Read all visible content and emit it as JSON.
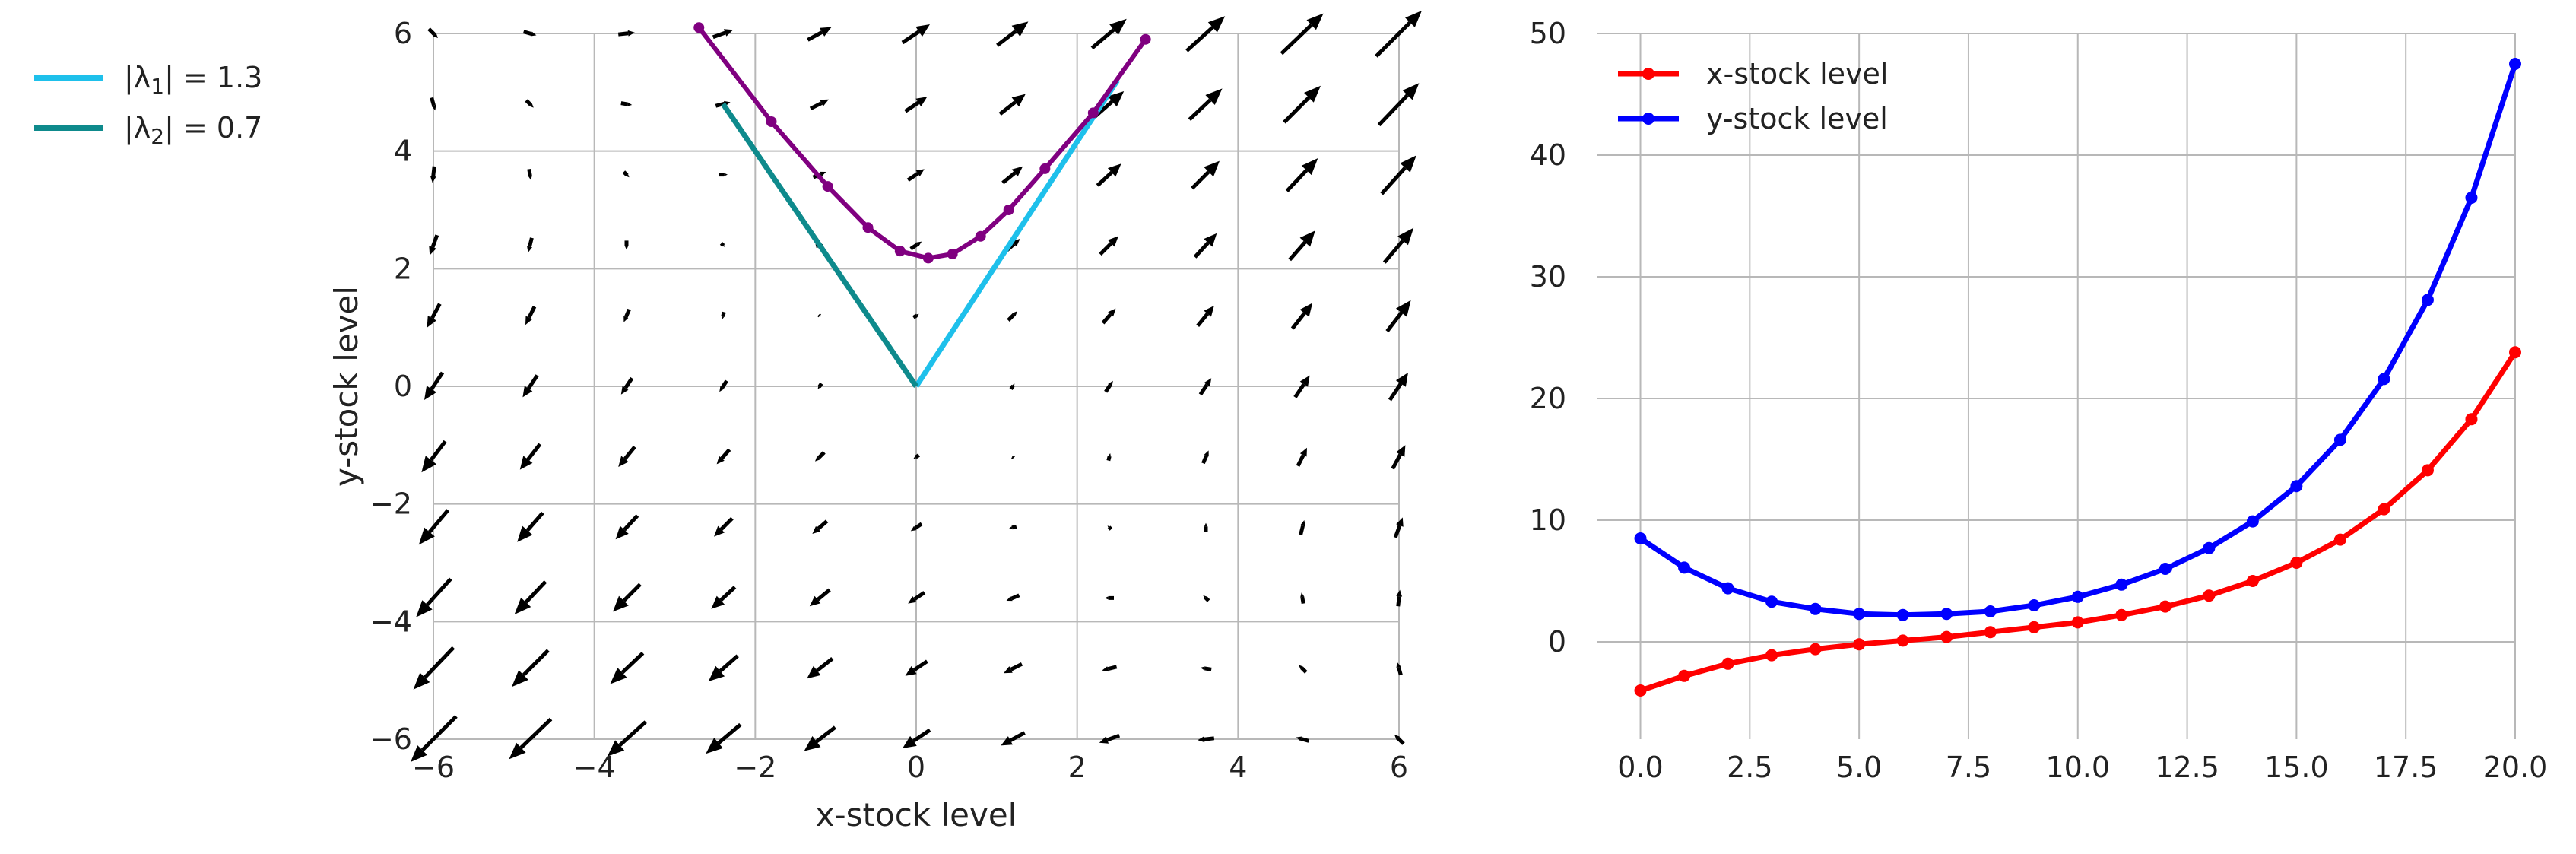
{
  "chart_data": [
    {
      "type": "quiver",
      "xlabel": "x-stock level",
      "ylabel": "y-stock level",
      "xlim": [
        -6,
        6
      ],
      "ylim": [
        -6,
        6
      ],
      "xticks": [
        -6,
        -4,
        -2,
        0,
        2,
        4,
        6
      ],
      "yticks": [
        -6,
        -4,
        -2,
        0,
        2,
        4,
        6
      ],
      "grid": true,
      "vector_field": {
        "x_points": [
          -6,
          -4.8,
          -3.6,
          -2.4,
          -1.2,
          0,
          1.2,
          2.4,
          3.6,
          4.8,
          6
        ],
        "y_points": [
          -6,
          -4.8,
          -3.6,
          -2.4,
          -1.2,
          0,
          1.2,
          2.4,
          3.6,
          4.8,
          6
        ],
        "matrix": [
          [
            0.2,
            0.3
          ],
          [
            0.3,
            0.2
          ]
        ],
        "arrow_color": "#000000"
      },
      "eigenvectors": [
        {
          "name": "|λ₁| = 1.3",
          "color": "#1EC0EB",
          "points": [
            [
              0,
              0
            ],
            [
              2.5,
              5.2
            ]
          ]
        },
        {
          "name": "|λ₂| = 0.7",
          "color": "#0E8A8C",
          "points": [
            [
              0,
              0
            ],
            [
              -2.4,
              4.8
            ]
          ]
        }
      ],
      "trajectory": {
        "color": "#800080",
        "points": [
          [
            -2.7,
            6.1
          ],
          [
            -1.8,
            4.5
          ],
          [
            -1.1,
            3.4
          ],
          [
            -0.6,
            2.7
          ],
          [
            -0.2,
            2.3
          ],
          [
            0.15,
            2.18
          ],
          [
            0.45,
            2.25
          ],
          [
            0.8,
            2.55
          ],
          [
            1.15,
            3.0
          ],
          [
            1.6,
            3.7
          ],
          [
            2.2,
            4.65
          ],
          [
            2.85,
            5.9
          ]
        ]
      },
      "legend": {
        "position": "outside-left",
        "entries": [
          {
            "prefix": "|λ",
            "sub": "1",
            "suffix": "| = 1.3",
            "color": "#1EC0EB"
          },
          {
            "prefix": "|λ",
            "sub": "2",
            "suffix": "| = 0.7",
            "color": "#0E8A8C"
          }
        ]
      }
    },
    {
      "type": "line",
      "xlabel": "",
      "ylabel": "",
      "xlim": [
        -1,
        20
      ],
      "ylim": [
        -8,
        50
      ],
      "xticks": [
        "0.0",
        "2.5",
        "5.0",
        "7.5",
        "10.0",
        "12.5",
        "15.0",
        "17.5",
        "20.0"
      ],
      "yticks": [
        0,
        10,
        20,
        30,
        40,
        50
      ],
      "grid": true,
      "legend_position": "top-left",
      "x": [
        0,
        1,
        2,
        3,
        4,
        5,
        6,
        7,
        8,
        9,
        10,
        11,
        12,
        13,
        14,
        15,
        16,
        17,
        18,
        19,
        20
      ],
      "series": [
        {
          "name": "x-stock level",
          "color": "#FF0000",
          "values": [
            -4.0,
            -2.8,
            -1.8,
            -1.1,
            -0.6,
            -0.2,
            0.1,
            0.4,
            0.8,
            1.2,
            1.6,
            2.2,
            2.9,
            3.8,
            5.0,
            6.5,
            8.4,
            10.9,
            14.1,
            18.3,
            23.8
          ]
        },
        {
          "name": "y-stock level",
          "color": "#0000FF",
          "values": [
            8.5,
            6.1,
            4.4,
            3.3,
            2.7,
            2.3,
            2.2,
            2.3,
            2.5,
            3.0,
            3.7,
            4.7,
            6.0,
            7.7,
            9.9,
            12.8,
            16.6,
            21.6,
            28.1,
            36.5,
            47.5
          ]
        }
      ]
    }
  ]
}
